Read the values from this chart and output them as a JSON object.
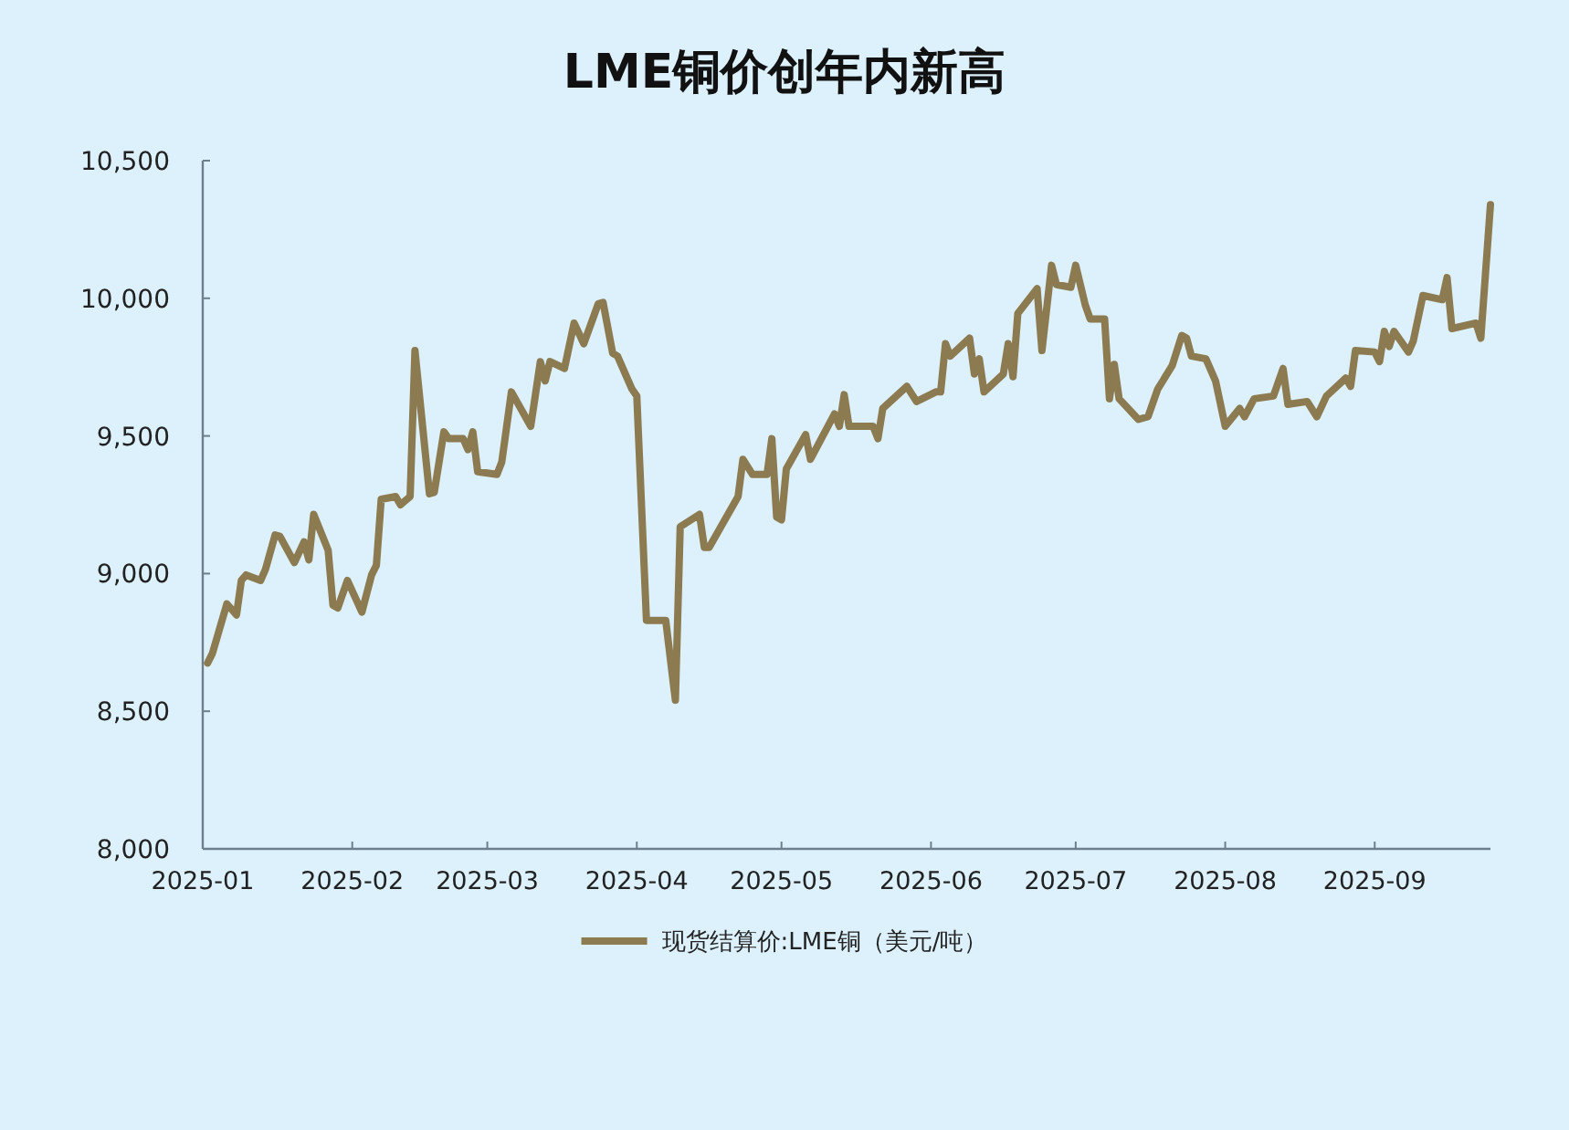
{
  "chart_data": {
    "type": "line",
    "title": "LME铜价创年内新高",
    "legend": "bottom",
    "grid": false,
    "line_style": "solid",
    "marker": "none",
    "xlim": [
      "2025-01-01",
      "2025-09-25"
    ],
    "xticks": [
      "2025-01",
      "2025-02",
      "2025-03",
      "2025-04",
      "2025-05",
      "2025-06",
      "2025-07",
      "2025-08",
      "2025-09"
    ],
    "ylim": [
      8000,
      10500
    ],
    "yticks": [
      {
        "value": 8000,
        "label": "8,000"
      },
      {
        "value": 8500,
        "label": "8,500"
      },
      {
        "value": 9000,
        "label": "9,000"
      },
      {
        "value": 9500,
        "label": "9,500"
      },
      {
        "value": 10000,
        "label": "10,000"
      },
      {
        "value": 10500,
        "label": "10,500"
      }
    ],
    "series": [
      {
        "name": "现货结算价:LME铜（美元/吨）",
        "color": "#8c7a50",
        "x": [
          "2025-01-02",
          "2025-01-03",
          "2025-01-06",
          "2025-01-08",
          "2025-01-09",
          "2025-01-10",
          "2025-01-13",
          "2025-01-14",
          "2025-01-16",
          "2025-01-17",
          "2025-01-20",
          "2025-01-22",
          "2025-01-23",
          "2025-01-24",
          "2025-01-27",
          "2025-01-28",
          "2025-01-29",
          "2025-01-31",
          "2025-02-03",
          "2025-02-05",
          "2025-02-06",
          "2025-02-07",
          "2025-02-10",
          "2025-02-11",
          "2025-02-13",
          "2025-02-14",
          "2025-02-17",
          "2025-02-18",
          "2025-02-20",
          "2025-02-21",
          "2025-02-24",
          "2025-02-25",
          "2025-02-26",
          "2025-02-27",
          "2025-03-03",
          "2025-03-04",
          "2025-03-06",
          "2025-03-10",
          "2025-03-12",
          "2025-03-13",
          "2025-03-14",
          "2025-03-17",
          "2025-03-19",
          "2025-03-21",
          "2025-03-24",
          "2025-03-25",
          "2025-03-27",
          "2025-03-28",
          "2025-03-31",
          "2025-04-01",
          "2025-04-03",
          "2025-04-07",
          "2025-04-09",
          "2025-04-10",
          "2025-04-14",
          "2025-04-15",
          "2025-04-16",
          "2025-04-22",
          "2025-04-23",
          "2025-04-25",
          "2025-04-28",
          "2025-04-29",
          "2025-04-30",
          "2025-05-01",
          "2025-05-02",
          "2025-05-06",
          "2025-05-07",
          "2025-05-12",
          "2025-05-13",
          "2025-05-14",
          "2025-05-15",
          "2025-05-20",
          "2025-05-21",
          "2025-05-22",
          "2025-05-27",
          "2025-05-29",
          "2025-06-02",
          "2025-06-03",
          "2025-06-04",
          "2025-06-05",
          "2025-06-09",
          "2025-06-10",
          "2025-06-11",
          "2025-06-12",
          "2025-06-16",
          "2025-06-17",
          "2025-06-18",
          "2025-06-19",
          "2025-06-23",
          "2025-06-24",
          "2025-06-26",
          "2025-06-27",
          "2025-06-30",
          "2025-07-01",
          "2025-07-03",
          "2025-07-04",
          "2025-07-07",
          "2025-07-08",
          "2025-07-09",
          "2025-07-10",
          "2025-07-14",
          "2025-07-16",
          "2025-07-18",
          "2025-07-21",
          "2025-07-23",
          "2025-07-24",
          "2025-07-25",
          "2025-07-28",
          "2025-07-30",
          "2025-08-01",
          "2025-08-04",
          "2025-08-05",
          "2025-08-07",
          "2025-08-11",
          "2025-08-13",
          "2025-08-14",
          "2025-08-18",
          "2025-08-20",
          "2025-08-22",
          "2025-08-26",
          "2025-08-27",
          "2025-08-28",
          "2025-09-01",
          "2025-09-02",
          "2025-09-03",
          "2025-09-04",
          "2025-09-05",
          "2025-09-08",
          "2025-09-09",
          "2025-09-11",
          "2025-09-15",
          "2025-09-16",
          "2025-09-17",
          "2025-09-22",
          "2025-09-23",
          "2025-09-25"
        ],
        "values": [
          8675,
          8710,
          8890,
          8850,
          8975,
          8995,
          8975,
          9015,
          9140,
          9135,
          9040,
          9115,
          9050,
          9215,
          9085,
          8885,
          8875,
          8975,
          8860,
          8995,
          9030,
          9270,
          9280,
          9250,
          9280,
          9810,
          9290,
          9295,
          9515,
          9490,
          9490,
          9450,
          9515,
          9370,
          9360,
          9405,
          9660,
          9535,
          9770,
          9700,
          9770,
          9745,
          9910,
          9835,
          9980,
          9985,
          9800,
          9790,
          9670,
          9645,
          8830,
          8830,
          8540,
          9170,
          9215,
          9095,
          9095,
          9280,
          9415,
          9360,
          9360,
          9490,
          9205,
          9195,
          9380,
          9505,
          9415,
          9580,
          9535,
          9650,
          9535,
          9535,
          9490,
          9600,
          9680,
          9625,
          9660,
          9660,
          9835,
          9790,
          9855,
          9725,
          9780,
          9660,
          9725,
          9835,
          9715,
          9945,
          10035,
          9810,
          10120,
          10050,
          10040,
          10120,
          9975,
          9925,
          9925,
          9635,
          9760,
          9635,
          9560,
          9570,
          9670,
          9755,
          9865,
          9855,
          9790,
          9780,
          9700,
          9535,
          9600,
          9570,
          9635,
          9645,
          9745,
          9615,
          9625,
          9570,
          9645,
          9710,
          9680,
          9810,
          9805,
          9770,
          9880,
          9825,
          9880,
          9805,
          9845,
          10010,
          9995,
          10075,
          9890,
          9910,
          9855,
          10340
        ]
      }
    ]
  }
}
